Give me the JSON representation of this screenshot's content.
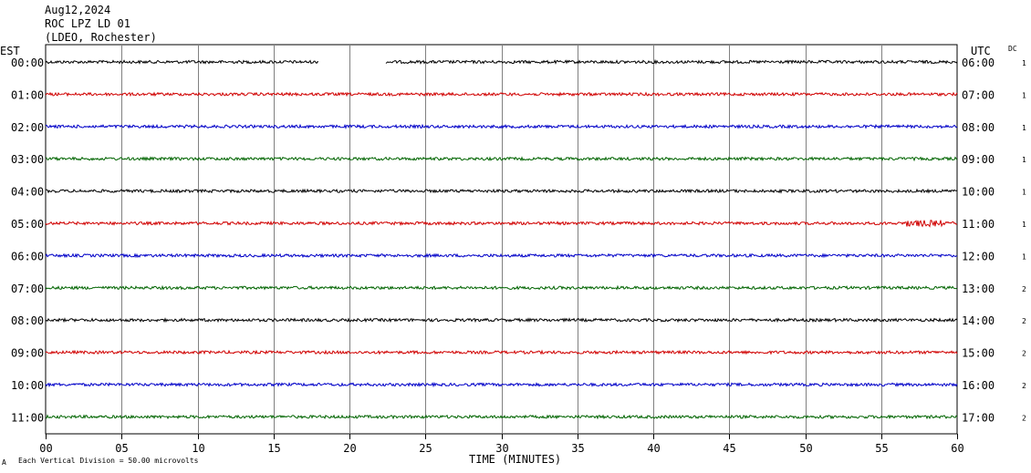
{
  "header": {
    "date": "Aug12,2024",
    "station": "ROC LPZ LD 01",
    "network": "(LDEO, Rochester)"
  },
  "left_timezone": "EST",
  "right_timezone": "UTC",
  "dc_label": "DC",
  "footer": {
    "scale_text": "Each Vertical Division =   50.00 microvolts",
    "corner_mark": "A"
  },
  "colors": {
    "black": "#000000",
    "red": "#d00000",
    "blue": "#0000c8",
    "green": "#006400",
    "grid": "#808080"
  },
  "chart_data": {
    "type": "line",
    "title": "ROC LPZ LD 01",
    "xlabel": "TIME (MINUTES)",
    "ylabel": "",
    "xlim": [
      0,
      60
    ],
    "x_ticks": [
      "00",
      "05",
      "10",
      "15",
      "20",
      "25",
      "30",
      "35",
      "40",
      "45",
      "50",
      "55",
      "60"
    ],
    "grid": "vertical every 5 minutes",
    "rows": [
      {
        "left": "00:00",
        "right": "06:00",
        "dc": "1",
        "color": "black",
        "gaps": [
          [
            18,
            22.4
          ]
        ]
      },
      {
        "left": "01:00",
        "right": "07:00",
        "dc": "1",
        "color": "red"
      },
      {
        "left": "02:00",
        "right": "08:00",
        "dc": "1",
        "color": "blue"
      },
      {
        "left": "03:00",
        "right": "09:00",
        "dc": "1",
        "color": "green"
      },
      {
        "left": "04:00",
        "right": "10:00",
        "dc": "1",
        "color": "black"
      },
      {
        "left": "05:00",
        "right": "11:00",
        "dc": "1",
        "color": "red"
      },
      {
        "left": "06:00",
        "right": "12:00",
        "dc": "1",
        "color": "blue"
      },
      {
        "left": "07:00",
        "right": "13:00",
        "dc": "2",
        "color": "green"
      },
      {
        "left": "08:00",
        "right": "14:00",
        "dc": "2",
        "color": "black"
      },
      {
        "left": "09:00",
        "right": "15:00",
        "dc": "2",
        "color": "red"
      },
      {
        "left": "10:00",
        "right": "16:00",
        "dc": "2",
        "color": "blue"
      },
      {
        "left": "11:00",
        "right": "17:00",
        "dc": "2",
        "color": "green"
      }
    ]
  }
}
